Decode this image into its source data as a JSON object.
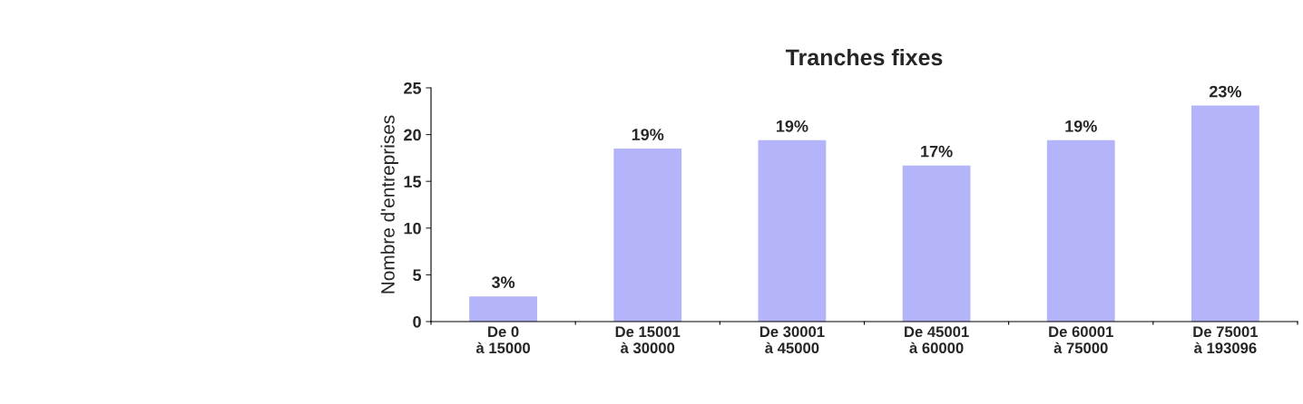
{
  "chart_data": {
    "type": "bar",
    "title": "Tranches fixes",
    "ylabel": "Nombre d'entreprises",
    "categories": [
      "De 0\nà 15000",
      "De 15001\nà 30000",
      "De 30001\nà 45000",
      "De 45001\nà 60000",
      "De 60001\nà 75000",
      "De 75001\nà 193096"
    ],
    "values": [
      2.7,
      18.5,
      19.4,
      16.7,
      19.4,
      23.1
    ],
    "value_labels": [
      "3%",
      "19%",
      "19%",
      "17%",
      "19%",
      "23%"
    ],
    "color": "#b4b4fa",
    "ylim": [
      0,
      25
    ],
    "yticks": [
      0,
      5,
      10,
      15,
      20,
      25
    ],
    "grid": false,
    "legend": false
  }
}
